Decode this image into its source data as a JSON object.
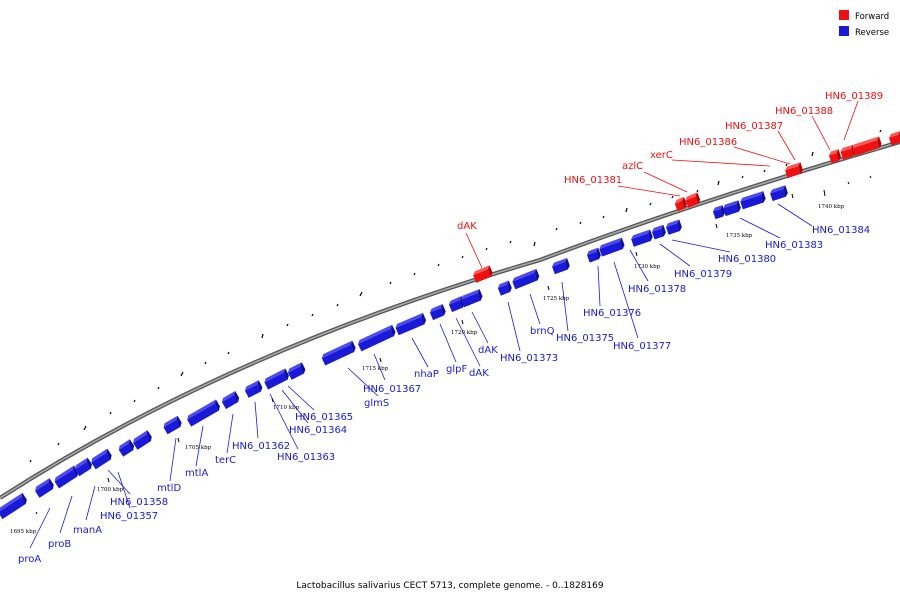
{
  "legend": [
    {
      "label": "Forward",
      "color": "#ee1111"
    },
    {
      "label": "Reverse",
      "color": "#1a1ad6"
    }
  ],
  "caption": "Lactobacillus salivarius CECT 5713, complete genome. - 0..1828169",
  "ruler_labels": [
    "1695 kbp",
    "1700 kbp",
    "1705 kbp",
    "1710 kbp",
    "1715 kbp",
    "1720 kbp",
    "1725 kbp",
    "1730 kbp",
    "1735 kbp",
    "1740 kbp"
  ],
  "forward_genes": [
    "dAK",
    "HN6_01381",
    "azlC",
    "xerC",
    "HN6_01386",
    "HN6_01387",
    "HN6_01388",
    "HN6_01389"
  ],
  "reverse_genes": [
    "proA",
    "proB",
    "manA",
    "HN6_01357",
    "HN6_01358",
    "mtlD",
    "mtlA",
    "terC",
    "HN6_01362",
    "HN6_01363",
    "HN6_01364",
    "HN6_01365",
    "glmS",
    "HN6_01367",
    "nhaP",
    "glpF",
    "dAK",
    "dAK",
    "HN6_01373",
    "brnQ",
    "HN6_01375",
    "HN6_01376",
    "HN6_01377",
    "HN6_01378",
    "HN6_01379",
    "HN6_01380",
    "HN6_01383",
    "HN6_01384"
  ],
  "colors": {
    "forward": "#ee1111",
    "reverse": "#1a1ad6",
    "backbone": "#888888"
  }
}
